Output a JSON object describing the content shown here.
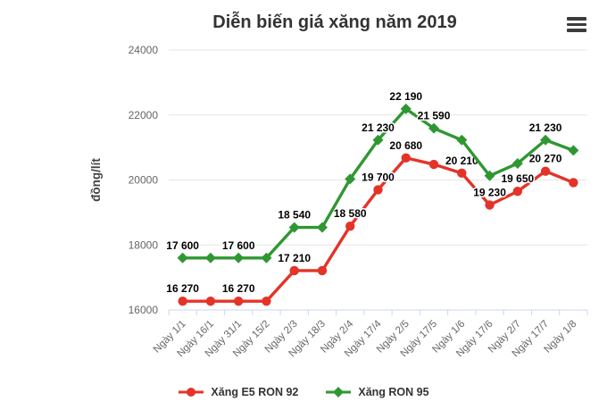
{
  "title": "Diễn biến giá xăng năm 2019",
  "export_menu": {
    "icon": "hamburger-menu-icon"
  },
  "chart_data": {
    "type": "line",
    "title": "Diễn biến giá xăng năm 2019",
    "ylabel": "đồng/lít",
    "xlabel": "",
    "ylim": [
      16000,
      24000
    ],
    "yticks": [
      16000,
      18000,
      20000,
      22000,
      24000
    ],
    "grid": true,
    "legend_position": "bottom",
    "categories": [
      "Ngày 1/1",
      "Ngày 16/1",
      "Ngày 31/1",
      "Ngày 15/2",
      "Ngày 2/3",
      "Ngày 18/3",
      "Ngày 2/4",
      "Ngày 17/4",
      "Ngày 2/5",
      "Ngày 17/5",
      "Ngày 1/6",
      "Ngày 17/6",
      "Ngày 2/7",
      "Ngày 17/7",
      "Ngày 1/8"
    ],
    "series": [
      {
        "name": "Xăng E5 RON 92",
        "color": "#e43328",
        "marker": "circle",
        "values": [
          16270,
          16270,
          16270,
          16270,
          17210,
          17210,
          18580,
          19700,
          20680,
          20480,
          20210,
          19230,
          19650,
          20270,
          19920
        ],
        "label_shown": [
          true,
          false,
          true,
          false,
          true,
          false,
          true,
          true,
          true,
          false,
          true,
          true,
          true,
          true,
          false
        ]
      },
      {
        "name": "Xăng RON 95",
        "color": "#2f9732",
        "marker": "diamond",
        "values": [
          17600,
          17600,
          17600,
          17600,
          18540,
          18540,
          20030,
          21230,
          22190,
          21590,
          21230,
          20130,
          20510,
          21230,
          20910
        ],
        "label_shown": [
          true,
          false,
          true,
          false,
          true,
          false,
          false,
          true,
          true,
          true,
          false,
          false,
          false,
          true,
          false
        ]
      }
    ]
  },
  "colors": {
    "title": "#333333",
    "axis_label": "#666666",
    "axis_title": "#444444",
    "gridline": "#e6e6e6",
    "axis_line": "#ccd6eb",
    "data_label": "#000000",
    "series_red": "#e43328",
    "series_green": "#2f9732"
  },
  "legend": {
    "items": [
      {
        "label": "Xăng E5 RON 92",
        "marker": "red-circle-line"
      },
      {
        "label": "Xăng RON 95",
        "marker": "green-diamond-line"
      }
    ]
  }
}
